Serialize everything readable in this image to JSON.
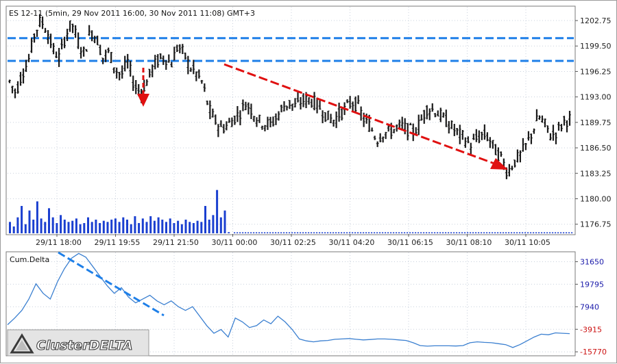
{
  "chart_data": [
    {
      "type": "candlestick",
      "title": "ES 12-11 (5min, 29 Nov 2011 16:00, 30 Nov 2011 11:08) GMT+3",
      "y_ticks": [
        "1202.75",
        "1199.50",
        "1196.25",
        "1193.00",
        "1189.75",
        "1186.50",
        "1183.25",
        "1180.00",
        "1176.75"
      ],
      "y_tick_values": [
        1202.75,
        1199.5,
        1196.25,
        1193.0,
        1189.75,
        1186.5,
        1183.25,
        1180.0,
        1176.75
      ],
      "ylim": [
        1175.5,
        1204.5
      ],
      "x_ticks": [
        "29/11 18:00",
        "29/11 19:55",
        "29/11 21:50",
        "30/11 00:00",
        "30/11 02:25",
        "30/11 04:20",
        "30/11 06:15",
        "30/11 08:10",
        "30/11 10:05"
      ],
      "price_path": [
        1195.0,
        1193.5,
        1196.0,
        1197.5,
        1201.0,
        1202.8,
        1201.5,
        1199.0,
        1198.0,
        1200.8,
        1202.5,
        1200.0,
        1198.5,
        1201.5,
        1200.5,
        1198.0,
        1198.8,
        1196.5,
        1195.8,
        1197.5,
        1194.5,
        1193.6,
        1194.8,
        1196.8,
        1197.8,
        1198.0,
        1197.2,
        1199.5,
        1198.5,
        1196.8,
        1196.0,
        1194.8,
        1191.5,
        1190.0,
        1189.0,
        1189.4,
        1190.2,
        1191.0,
        1192.2,
        1191.2,
        1190.0,
        1189.6,
        1189.5,
        1190.5,
        1191.8,
        1192.2,
        1191.8,
        1192.5,
        1192.7,
        1192.3,
        1191.5,
        1190.5,
        1190.0,
        1190.8,
        1191.5,
        1192.4,
        1191.8,
        1190.0,
        1189.2,
        1187.5,
        1188.4,
        1188.5,
        1189.0,
        1189.3,
        1188.8,
        1188.5,
        1189.8,
        1191.5,
        1191.4,
        1190.8,
        1190.0,
        1189.2,
        1188.4,
        1187.8,
        1186.8,
        1187.6,
        1188.2,
        1187.8,
        1186.2,
        1185.2,
        1183.4,
        1184.6,
        1185.5,
        1186.8,
        1188.5,
        1190.5,
        1189.5,
        1188.0,
        1188.6,
        1189.8,
        1190.2
      ]
    },
    {
      "type": "bar",
      "series_role": "volume",
      "values": [
        10,
        6,
        14,
        24,
        8,
        20,
        12,
        28,
        13,
        10,
        22,
        14,
        9,
        16,
        12,
        10,
        11,
        13,
        8,
        9,
        14,
        10,
        12,
        9,
        11,
        10,
        12,
        13,
        10,
        14,
        12,
        8,
        15,
        9,
        13,
        10,
        15,
        11,
        14,
        12,
        10,
        13,
        9,
        11,
        8,
        12,
        10,
        9,
        11,
        10,
        24,
        12,
        16,
        38,
        14,
        20,
        1
      ]
    },
    {
      "type": "line",
      "title": "Cum.Delta",
      "y_ticks": [
        "31650",
        "19795",
        "7940",
        "-3915",
        "-15770"
      ],
      "y_tick_values": [
        31650,
        19795,
        7940,
        -3915,
        -15770
      ],
      "y_tick_colors": [
        "#1a1aaa",
        "#1a1aaa",
        "#1a1aaa",
        "#cc1111",
        "#cc1111"
      ],
      "ylim": [
        -17500,
        36500
      ],
      "values": [
        -1500,
        2000,
        6000,
        12000,
        20000,
        15000,
        12000,
        21000,
        28000,
        33500,
        36000,
        34000,
        29000,
        24000,
        19000,
        15000,
        18000,
        13000,
        10000,
        12000,
        14000,
        11000,
        9000,
        11000,
        8000,
        6000,
        8000,
        3000,
        -2000,
        -6000,
        -4000,
        -8000,
        2000,
        0,
        -3000,
        -2000,
        1000,
        -1000,
        3000,
        0,
        -4000,
        -9000,
        -10000,
        -10500,
        -10000,
        -9800,
        -9200,
        -9000,
        -8800,
        -9200,
        -9500,
        -9300,
        -9000,
        -9000,
        -9200,
        -9500,
        -9800,
        -11000,
        -12500,
        -12800,
        -12600,
        -12600,
        -12600,
        -12700,
        -12500,
        -11000,
        -10500,
        -10800,
        -11000,
        -11500,
        -12000,
        -13500,
        -12000,
        -10000,
        -8000,
        -6500,
        -6800,
        -5800,
        -6000,
        -6200
      ]
    }
  ],
  "brand": "ClusterDELTA",
  "colors": {
    "candle": "#1a1a1a",
    "level_line": "#1e7fe8",
    "arrow": "#e01010",
    "delta_line": "#3a7fd0",
    "delta_trend": "#1e7fe8",
    "volume_bar": "#1a3fd0",
    "grid": "#c8d0dc"
  }
}
